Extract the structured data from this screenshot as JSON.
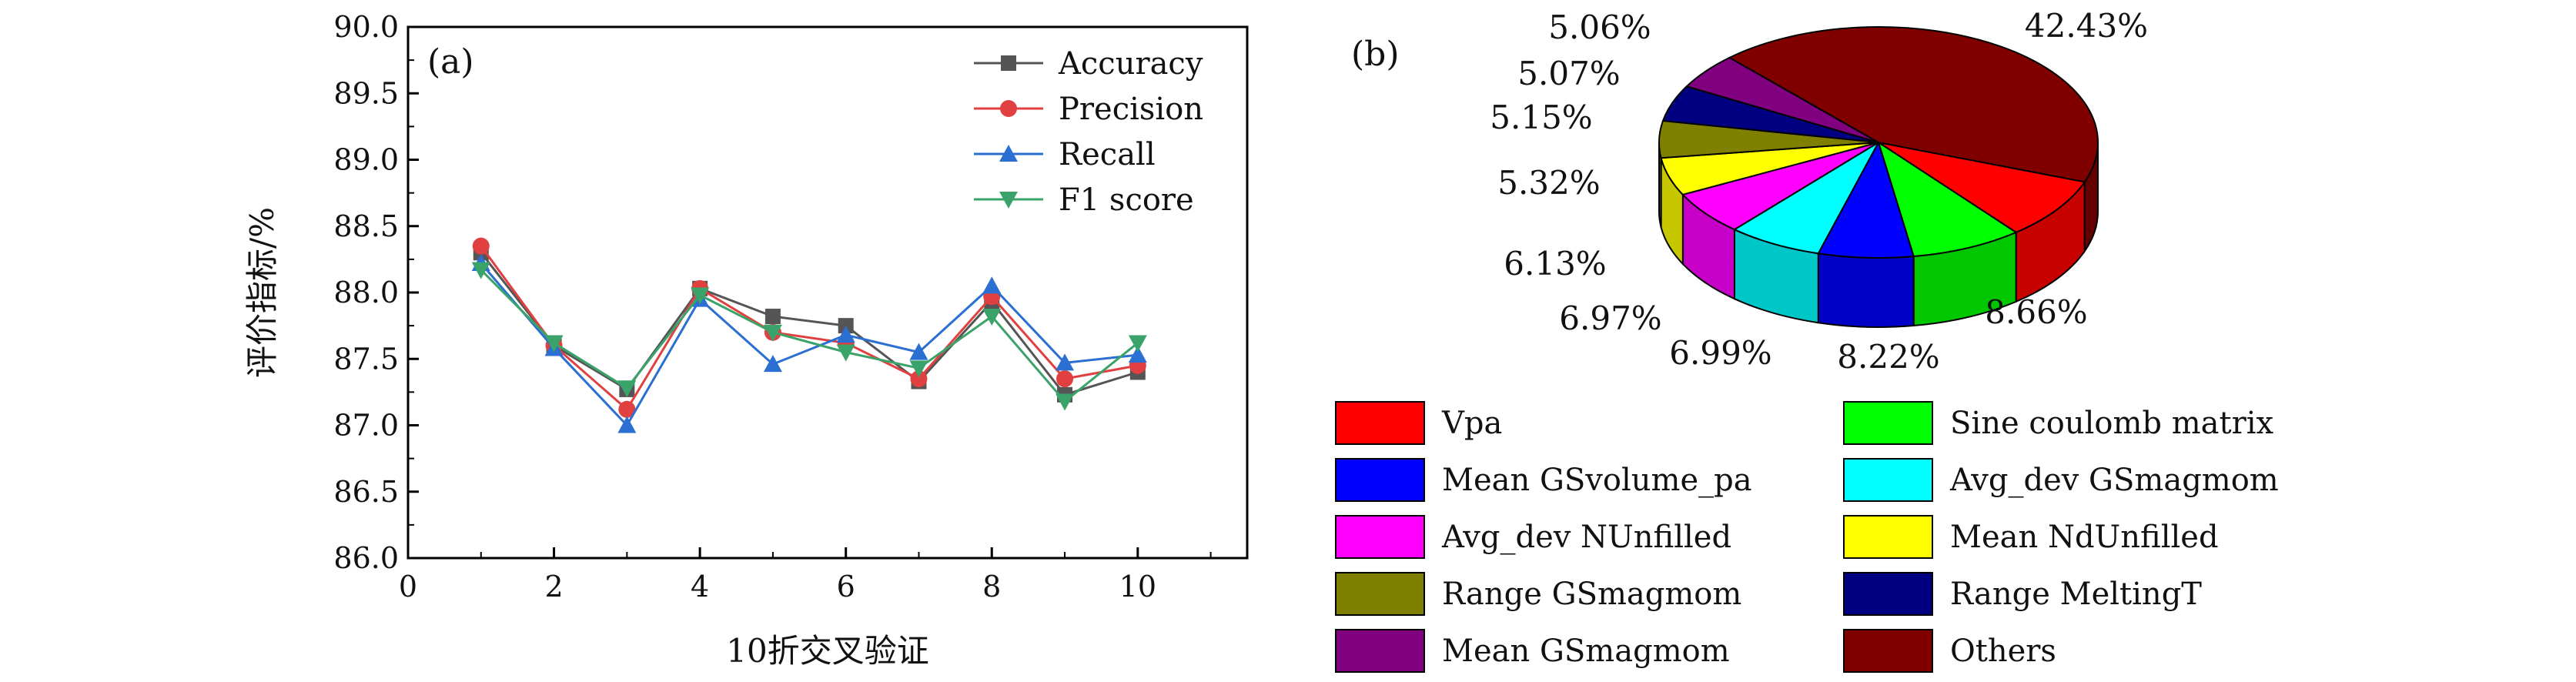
{
  "chart_data": [
    {
      "type": "line",
      "panel_label": "(a)",
      "xlabel": "10折交叉验证",
      "ylabel": "评价指标/%",
      "xlim": [
        0,
        11.5
      ],
      "ylim": [
        86.0,
        90.0
      ],
      "x_ticks": [
        "0",
        "2",
        "4",
        "6",
        "8",
        "10"
      ],
      "y_ticks": [
        "86.0",
        "86.5",
        "87.0",
        "87.5",
        "88.0",
        "88.5",
        "89.0",
        "89.5",
        "90.0"
      ],
      "grid": false,
      "legend_position": "top-right",
      "x": [
        1,
        2,
        3,
        4,
        5,
        6,
        7,
        8,
        9,
        10
      ],
      "series": [
        {
          "name": "Accuracy",
          "color": "#555555",
          "marker": "square",
          "values": [
            88.3,
            87.6,
            87.27,
            88.03,
            87.82,
            87.75,
            87.33,
            87.93,
            87.23,
            87.4
          ]
        },
        {
          "name": "Precision",
          "color": "#e0403f",
          "marker": "circle",
          "values": [
            88.35,
            87.6,
            87.12,
            88.03,
            87.7,
            87.62,
            87.35,
            87.97,
            87.35,
            87.45
          ]
        },
        {
          "name": "Recall",
          "color": "#2a6fd1",
          "marker": "triangle-up",
          "values": [
            88.22,
            87.58,
            87.0,
            87.95,
            87.46,
            87.68,
            87.55,
            88.05,
            87.47,
            87.53
          ]
        },
        {
          "name": "F1 score",
          "color": "#3aa36a",
          "marker": "triangle-down",
          "values": [
            88.17,
            87.62,
            87.28,
            87.98,
            87.7,
            87.55,
            87.43,
            87.82,
            87.18,
            87.62
          ]
        }
      ]
    },
    {
      "type": "pie",
      "panel_label": "(b)",
      "style": "3d",
      "slices": [
        {
          "name": "Vpa",
          "value": 8.66,
          "label": "8.66%",
          "color": "#ff0000"
        },
        {
          "name": "Sine coulomb matrix",
          "value": 8.22,
          "label": "8.22%",
          "color": "#00ff00"
        },
        {
          "name": "Mean GSvolume_pa",
          "value": 6.99,
          "label": "6.99%",
          "color": "#0000ff"
        },
        {
          "name": "Avg_dev GSmagmom",
          "value": 6.97,
          "label": "6.97%",
          "color": "#00ffff"
        },
        {
          "name": "Avg_dev NUnfilled",
          "value": 6.13,
          "label": "6.13%",
          "color": "#ff00ff"
        },
        {
          "name": "Mean NdUnfilled",
          "value": 5.32,
          "label": "5.32%",
          "color": "#ffff00"
        },
        {
          "name": "Range GSmagmom",
          "value": 5.15,
          "label": "5.15%",
          "color": "#808000"
        },
        {
          "name": "Range MeltingT",
          "value": 5.07,
          "label": "5.07%",
          "color": "#000080"
        },
        {
          "name": "Mean GSmagmom",
          "value": 5.06,
          "label": "5.06%",
          "color": "#800080"
        },
        {
          "name": "Others",
          "value": 42.43,
          "label": "42.43%",
          "color": "#800000"
        }
      ],
      "legend_order": [
        "Vpa",
        "Sine coulomb matrix",
        "Mean GSvolume_pa",
        "Avg_dev GSmagmom",
        "Avg_dev NUnfilled",
        "Mean NdUnfilled",
        "Range GSmagmom",
        "Range MeltingT",
        "Mean GSmagmom",
        "Others"
      ]
    }
  ]
}
